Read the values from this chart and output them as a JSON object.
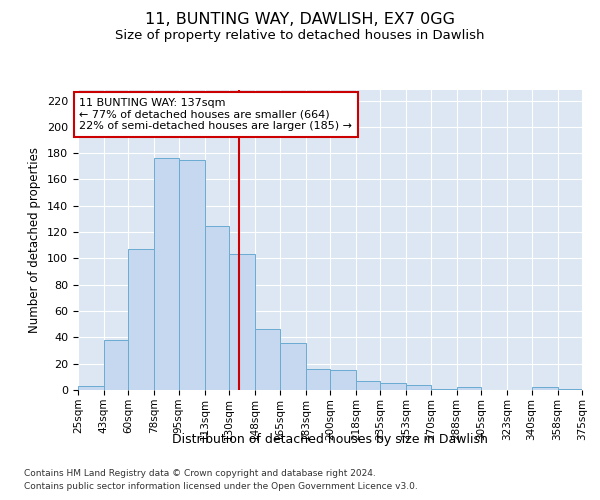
{
  "title1": "11, BUNTING WAY, DAWLISH, EX7 0GG",
  "title2": "Size of property relative to detached houses in Dawlish",
  "xlabel": "Distribution of detached houses by size in Dawlish",
  "ylabel": "Number of detached properties",
  "xtick_labels": [
    "25sqm",
    "43sqm",
    "60sqm",
    "78sqm",
    "95sqm",
    "113sqm",
    "130sqm",
    "148sqm",
    "165sqm",
    "183sqm",
    "200sqm",
    "218sqm",
    "235sqm",
    "253sqm",
    "270sqm",
    "288sqm",
    "305sqm",
    "323sqm",
    "340sqm",
    "358sqm",
    "375sqm"
  ],
  "bin_edges": [
    25,
    43,
    60,
    78,
    95,
    113,
    130,
    148,
    165,
    183,
    200,
    218,
    235,
    253,
    270,
    288,
    305,
    323,
    340,
    358,
    375
  ],
  "heights": [
    3,
    38,
    107,
    176,
    175,
    125,
    103,
    46,
    36,
    16,
    15,
    7,
    5,
    4,
    1,
    2,
    0,
    0,
    2,
    1
  ],
  "bar_color": "#c5d8ef",
  "bar_edge_color": "#6aabd2",
  "vline_x": 137,
  "vline_color": "#cc0000",
  "ylim": [
    0,
    228
  ],
  "yticks": [
    0,
    20,
    40,
    60,
    80,
    100,
    120,
    140,
    160,
    180,
    200,
    220
  ],
  "annotation_line1": "11 BUNTING WAY: 137sqm",
  "annotation_line2": "← 77% of detached houses are smaller (664)",
  "annotation_line3": "22% of semi-detached houses are larger (185) →",
  "bg_color": "#dde7f3",
  "grid_color": "#ffffff",
  "footnote1": "Contains HM Land Registry data © Crown copyright and database right 2024.",
  "footnote2": "Contains public sector information licensed under the Open Government Licence v3.0."
}
